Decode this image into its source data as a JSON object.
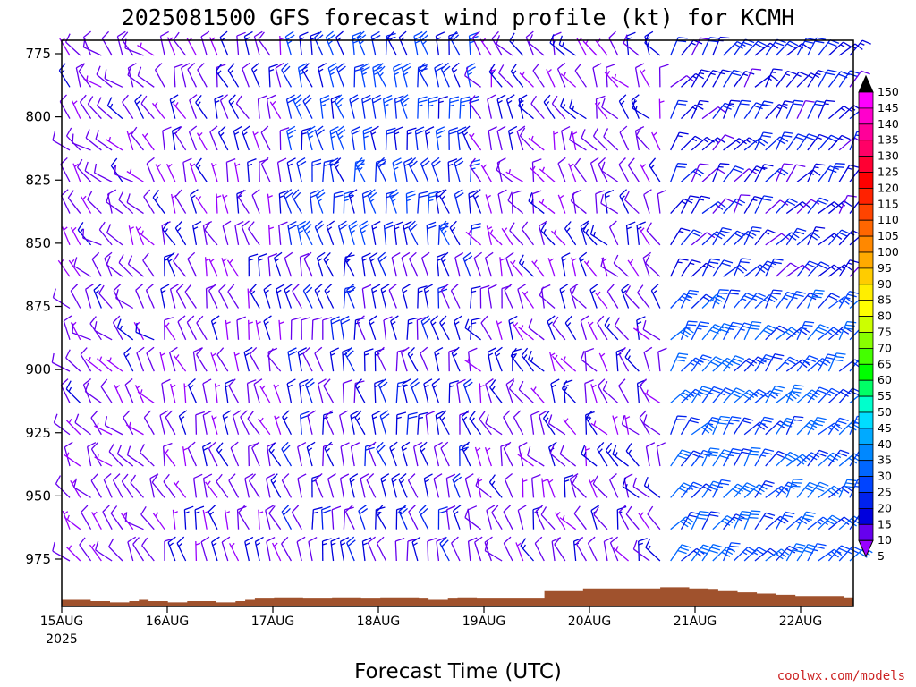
{
  "chart_data": {
    "type": "wind-barb-profile",
    "title": "2025081500 GFS forecast wind profile (kt) for KCMH",
    "xlabel": "Forecast Time (UTC)",
    "credit": "coolwx.com/models",
    "y_axis": {
      "ticks": [
        "775",
        "800",
        "825",
        "850",
        "875",
        "900",
        "925",
        "950",
        "975"
      ],
      "levels_hpa": [
        775,
        800,
        825,
        850,
        875,
        900,
        925,
        950,
        975
      ],
      "range_hpa": [
        775,
        985
      ]
    },
    "x_axis": {
      "ticks": [
        "15AUG",
        "16AUG",
        "17AUG",
        "18AUG",
        "19AUG",
        "20AUG",
        "21AUG",
        "22AUG"
      ],
      "start_year_label": "2025"
    },
    "colorbar": {
      "labels": [
        "150",
        "145",
        "140",
        "135",
        "130",
        "125",
        "120",
        "115",
        "110",
        "105",
        "100",
        "95",
        "90",
        "85",
        "80",
        "75",
        "70",
        "65",
        "60",
        "55",
        "50",
        "45",
        "40",
        "35",
        "30",
        "25",
        "20",
        "15",
        "10",
        "5"
      ],
      "colors": [
        "#000000",
        "#ff00ff",
        "#ff00cc",
        "#ff0099",
        "#ff0066",
        "#ff0033",
        "#ff0000",
        "#ff2200",
        "#ff4400",
        "#ff6600",
        "#ff8800",
        "#ffaa00",
        "#ffcc00",
        "#ffee00",
        "#ffff00",
        "#ccff00",
        "#88ff00",
        "#44ff00",
        "#00ff00",
        "#00ff66",
        "#00ffcc",
        "#00ddff",
        "#00aaff",
        "#0088ff",
        "#0066ff",
        "#0044ff",
        "#0022ee",
        "#0000dd",
        "#6600ee",
        "#9900ff"
      ],
      "unit": "kt"
    },
    "surface_pressure_hpa": [
      980.5,
      980.5,
      980.5,
      981,
      981,
      981.5,
      981.5,
      981,
      980.5,
      981,
      981,
      981.5,
      981.5,
      981,
      981,
      981,
      981.5,
      981.5,
      981,
      980.5,
      980,
      980,
      979.5,
      979.5,
      979.5,
      980,
      980,
      980,
      979.5,
      979.5,
      979.5,
      980,
      980,
      979.5,
      979.5,
      979.5,
      979.5,
      980,
      980.5,
      980.5,
      980,
      979.5,
      979.5,
      980,
      980,
      980,
      980,
      980,
      980,
      980,
      977,
      977,
      977,
      977,
      976,
      976,
      976,
      976,
      976,
      976,
      976,
      976,
      975.5,
      975.5,
      975.5,
      976,
      976,
      976.5,
      977,
      977,
      977.5,
      977.5,
      978,
      978,
      978.5,
      978.5,
      979,
      979,
      979,
      979,
      979,
      979.5,
      979.5
    ],
    "surface_color": "#a0522d",
    "barb_speed_range_kt": [
      5,
      35
    ],
    "notes": "Wind barb field: columns every 3h, rows every 12.5 hPa; directions mostly northerly to northwesterly (300-360 deg), speeds mostly 5-15 kt, increasing to 20-30 kt aloft and late in period."
  }
}
